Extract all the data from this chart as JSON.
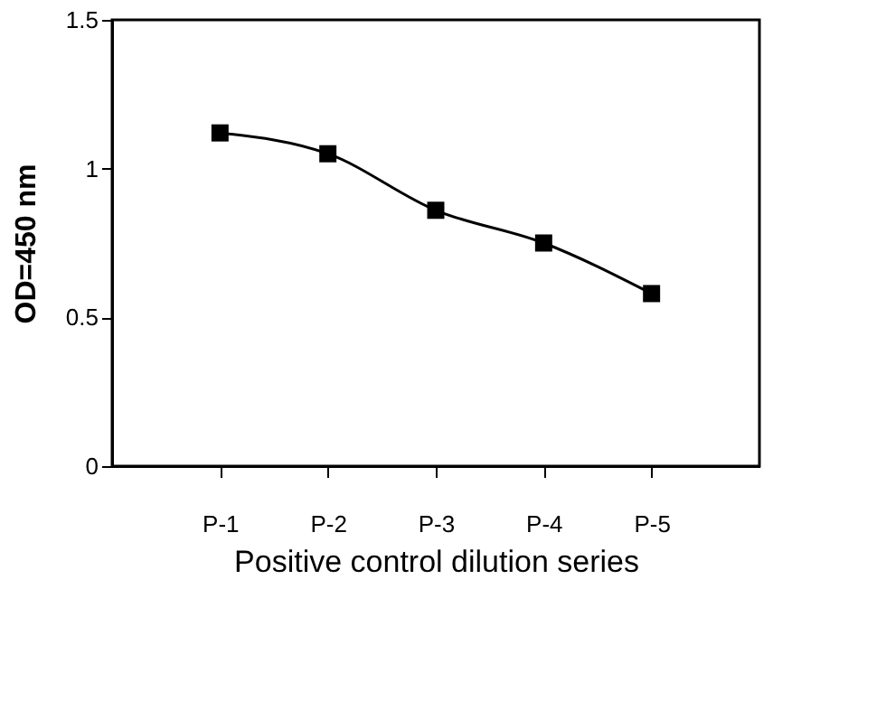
{
  "chart_data": {
    "type": "line",
    "xlabel": "Positive control dilution series",
    "ylabel": "OD=450 nm",
    "categories": [
      "P-1",
      "P-2",
      "P-3",
      "P-4",
      "P-5"
    ],
    "series": [
      {
        "color": "#000000",
        "values": [
          1.12,
          1.05,
          0.86,
          0.75,
          0.58
        ]
      }
    ],
    "ylim": [
      0,
      1.5
    ],
    "yticks": [
      0,
      0.5,
      1,
      1.5
    ],
    "grid": false,
    "marker": "square",
    "line_style": "solid"
  }
}
